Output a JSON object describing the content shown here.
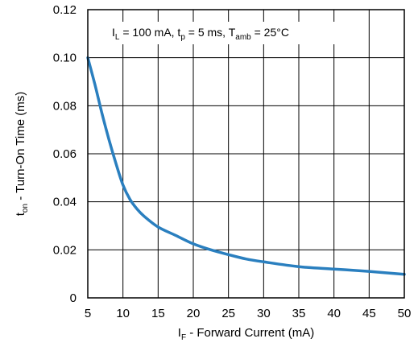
{
  "chart_data": {
    "type": "line",
    "title": "",
    "xlabel": {
      "main": "I",
      "sub": "F",
      "rest": " - Forward Current (mA)"
    },
    "ylabel": {
      "main": "t",
      "sub": "on",
      "rest": " - Turn-On Time (ms)"
    },
    "xlim": [
      5,
      50
    ],
    "ylim": [
      0,
      0.12
    ],
    "x_ticks": [
      5,
      10,
      15,
      20,
      25,
      30,
      35,
      40,
      45,
      50
    ],
    "x_tick_labels": [
      "5",
      "10",
      "15",
      "20",
      "25",
      "30",
      "35",
      "40",
      "45",
      "50"
    ],
    "y_ticks": [
      0,
      0.02,
      0.04,
      0.06,
      0.08,
      0.1,
      0.12
    ],
    "y_tick_labels": [
      "0",
      "0.02",
      "0.04",
      "0.06",
      "0.08",
      "0.10",
      "0.12"
    ],
    "grid": true,
    "line_color": "#2a7fbf",
    "annotation": [
      {
        "text": "I",
        "sub": "L"
      },
      {
        "text": " = 100 mA, t",
        "sub": "p"
      },
      {
        "text": " = 5 ms, T",
        "sub": "amb"
      },
      {
        "text": " = 25°C",
        "sub": ""
      }
    ],
    "series": [
      {
        "x": [
          5,
          6,
          7,
          8,
          9,
          10,
          11,
          12,
          13,
          15,
          17.5,
          20,
          22.5,
          25,
          27.5,
          30,
          35,
          40,
          45,
          50
        ],
        "y": [
          0.1,
          0.089,
          0.077,
          0.066,
          0.056,
          0.047,
          0.041,
          0.037,
          0.034,
          0.0295,
          0.026,
          0.0225,
          0.02,
          0.018,
          0.0162,
          0.015,
          0.013,
          0.012,
          0.011,
          0.0098
        ]
      }
    ]
  }
}
